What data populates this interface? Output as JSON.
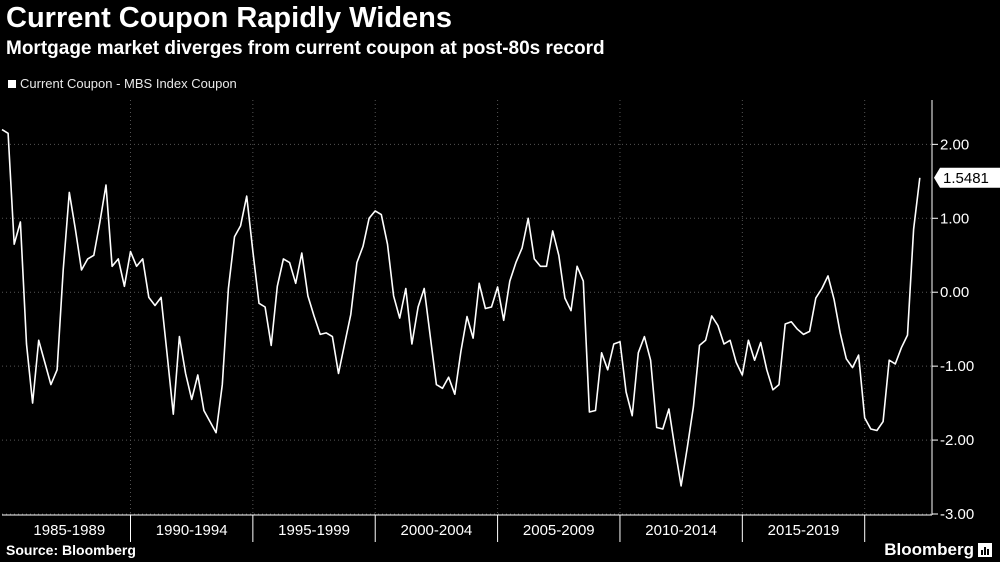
{
  "header": {
    "title": "Current Coupon Rapidly Widens",
    "subtitle": "Mortgage market diverges from current coupon at post-80s record"
  },
  "footer": {
    "source": "Source: Bloomberg",
    "brand": "Bloomberg"
  },
  "colors": {
    "background": "#000000",
    "line": "#ffffff",
    "grid": "#555555"
  },
  "chart_data": {
    "type": "line",
    "title": "Current Coupon Rapidly Widens",
    "subtitle": "Mortgage market diverges from current coupon at post-80s record",
    "legend": [
      "Current Coupon - MBS Index Coupon"
    ],
    "legend_position": "top-left",
    "x_range": [
      1984.75,
      2022.75
    ],
    "ylim": [
      -3.0,
      2.6
    ],
    "y_ticks": [
      2.0,
      1.0,
      0.0,
      -1.0,
      -2.0,
      -3.0
    ],
    "y_tick_labels": [
      "2.00",
      "1.00",
      "0.00",
      "-1.00",
      "-2.00",
      "-3.00"
    ],
    "x_tick_labels": [
      "1985-1989",
      "1990-1994",
      "1995-1999",
      "2000-2004",
      "2005-2009",
      "2010-2014",
      "2015-2019"
    ],
    "grid": true,
    "last_value_label": "1.5481",
    "series": [
      {
        "name": "Current Coupon - MBS Index Coupon",
        "x": [
          1984.75,
          1985.0,
          1985.25,
          1985.5,
          1985.75,
          1986.0,
          1986.25,
          1986.5,
          1986.75,
          1987.0,
          1987.25,
          1987.5,
          1987.75,
          1988.0,
          1988.25,
          1988.5,
          1988.75,
          1989.0,
          1989.25,
          1989.5,
          1989.75,
          1990.0,
          1990.25,
          1990.5,
          1990.75,
          1991.0,
          1991.25,
          1991.5,
          1991.75,
          1992.0,
          1992.25,
          1992.5,
          1992.75,
          1993.0,
          1993.25,
          1993.5,
          1993.75,
          1994.0,
          1994.25,
          1994.5,
          1994.75,
          1995.0,
          1995.25,
          1995.5,
          1995.75,
          1996.0,
          1996.25,
          1996.5,
          1996.75,
          1997.0,
          1997.25,
          1997.5,
          1997.75,
          1998.0,
          1998.25,
          1998.5,
          1998.75,
          1999.0,
          1999.25,
          1999.5,
          1999.75,
          2000.0,
          2000.25,
          2000.5,
          2000.75,
          2001.0,
          2001.25,
          2001.5,
          2001.75,
          2002.0,
          2002.25,
          2002.5,
          2002.75,
          2003.0,
          2003.25,
          2003.5,
          2003.75,
          2004.0,
          2004.25,
          2004.5,
          2004.75,
          2005.0,
          2005.25,
          2005.5,
          2005.75,
          2006.0,
          2006.25,
          2006.5,
          2006.75,
          2007.0,
          2007.25,
          2007.5,
          2007.75,
          2008.0,
          2008.25,
          2008.5,
          2008.75,
          2009.0,
          2009.25,
          2009.5,
          2009.75,
          2010.0,
          2010.25,
          2010.5,
          2010.75,
          2011.0,
          2011.25,
          2011.5,
          2011.75,
          2012.0,
          2012.25,
          2012.5,
          2012.75,
          2013.0,
          2013.25,
          2013.5,
          2013.75,
          2014.0,
          2014.25,
          2014.5,
          2014.75,
          2015.0,
          2015.25,
          2015.5,
          2015.75,
          2016.0,
          2016.25,
          2016.5,
          2016.75,
          2017.0,
          2017.25,
          2017.5,
          2017.75,
          2018.0,
          2018.25,
          2018.5,
          2018.75,
          2019.0,
          2019.25,
          2019.5,
          2019.75,
          2020.0,
          2020.25,
          2020.5,
          2020.75,
          2021.0,
          2021.25,
          2021.5,
          2021.75,
          2022.0,
          2022.25
        ],
        "values": [
          2.2,
          2.15,
          0.65,
          0.95,
          -0.7,
          -1.5,
          -0.65,
          -0.95,
          -1.25,
          -1.05,
          0.3,
          1.35,
          0.85,
          0.3,
          0.45,
          0.5,
          0.95,
          1.45,
          0.35,
          0.45,
          0.08,
          0.55,
          0.35,
          0.45,
          -0.07,
          -0.18,
          -0.07,
          -0.85,
          -1.65,
          -0.6,
          -1.1,
          -1.45,
          -1.12,
          -1.6,
          -1.75,
          -1.9,
          -1.25,
          0.05,
          0.75,
          0.9,
          1.3,
          0.55,
          -0.15,
          -0.2,
          -0.72,
          0.08,
          0.45,
          0.4,
          0.12,
          0.53,
          -0.05,
          -0.32,
          -0.57,
          -0.55,
          -0.6,
          -1.1,
          -0.7,
          -0.3,
          0.4,
          0.62,
          1.0,
          1.1,
          1.05,
          0.65,
          -0.05,
          -0.35,
          0.05,
          -0.7,
          -0.2,
          0.05,
          -0.6,
          -1.25,
          -1.3,
          -1.15,
          -1.38,
          -0.8,
          -0.33,
          -0.62,
          0.12,
          -0.22,
          -0.2,
          0.07,
          -0.38,
          0.15,
          0.4,
          0.6,
          1.0,
          0.45,
          0.35,
          0.35,
          0.83,
          0.5,
          -0.08,
          -0.25,
          0.35,
          0.15,
          -1.62,
          -1.6,
          -0.82,
          -1.05,
          -0.7,
          -0.67,
          -1.35,
          -1.67,
          -0.82,
          -0.6,
          -0.92,
          -1.83,
          -1.85,
          -1.58,
          -2.12,
          -2.62,
          -2.1,
          -1.55,
          -0.72,
          -0.65,
          -0.32,
          -0.45,
          -0.7,
          -0.65,
          -0.95,
          -1.12,
          -0.65,
          -0.92,
          -0.68,
          -1.05,
          -1.32,
          -1.25,
          -0.43,
          -0.4,
          -0.5,
          -0.57,
          -0.53,
          -0.08,
          0.05,
          0.22,
          -0.1,
          -0.55,
          -0.9,
          -1.02,
          -0.85,
          -1.7,
          -1.85,
          -1.87,
          -1.75,
          -0.92,
          -0.97,
          -0.75,
          -0.58,
          0.85,
          1.5481
        ]
      }
    ]
  }
}
